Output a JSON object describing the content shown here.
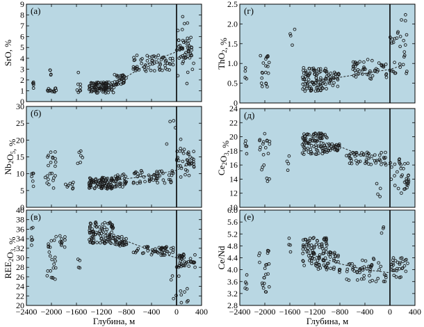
{
  "figure": {
    "panel_bg": "#b9d7e3",
    "marker_color": "#1a1a1a"
  },
  "chart_data": [
    {
      "type": "scatter",
      "panel_label": "(а)",
      "ylabel_parts": [
        "SrO, %"
      ],
      "xlim": [
        -2400,
        400
      ],
      "ylim": [
        0,
        9
      ],
      "yticks": [
        0,
        1,
        2,
        3,
        4,
        5,
        6,
        7,
        8,
        9
      ],
      "ytick_labels": [
        "0",
        "1",
        "2",
        "3",
        "4",
        "5",
        "6",
        "7",
        "8",
        "9"
      ],
      "xticks": [
        -2400,
        -2000,
        -1600,
        -1200,
        -800,
        -400,
        0,
        400
      ],
      "xtick_labels": [],
      "xlabel": "",
      "trend": [
        [
          -1400,
          0.8
        ],
        [
          -1000,
          1.5
        ],
        [
          -800,
          2.3
        ],
        [
          -400,
          3.7
        ],
        [
          0,
          4.6
        ],
        [
          200,
          5.3
        ]
      ],
      "clusters": [
        {
          "x0": -2300,
          "x1": -2280,
          "y0": 1.0,
          "y1": 1.8,
          "n": 5
        },
        {
          "x0": -2080,
          "x1": -1920,
          "y0": 0.8,
          "y1": 1.3,
          "n": 14
        },
        {
          "x0": -2040,
          "x1": -2000,
          "y0": 2.3,
          "y1": 3.0,
          "n": 4
        },
        {
          "x0": -1620,
          "x1": -1500,
          "y0": 0.8,
          "y1": 2.8,
          "n": 8
        },
        {
          "x0": -1400,
          "x1": -1000,
          "y0": 0.8,
          "y1": 1.8,
          "n": 90
        },
        {
          "x0": -1000,
          "x1": -800,
          "y0": 1.5,
          "y1": 2.5,
          "n": 30
        },
        {
          "x0": -700,
          "x1": -50,
          "y0": 2.8,
          "y1": 4.3,
          "n": 60
        },
        {
          "x0": 0,
          "x1": 250,
          "y0": 4.0,
          "y1": 6.0,
          "n": 40
        },
        {
          "x0": 0,
          "x1": 300,
          "y0": 1.5,
          "y1": 8.0,
          "n": 15
        }
      ]
    },
    {
      "type": "scatter",
      "panel_label": "(б)",
      "ylabel_parts": [
        "Nb",
        "2",
        "O",
        "5",
        ", %"
      ],
      "xlim": [
        -2400,
        400
      ],
      "ylim": [
        0,
        30
      ],
      "yticks": [
        0,
        5,
        10,
        15,
        20,
        25,
        30
      ],
      "ytick_labels": [
        "0",
        "5",
        "10",
        "15",
        "20",
        "25",
        "30"
      ],
      "xticks": [
        -2400,
        -2000,
        -1600,
        -1200,
        -800,
        -400,
        0,
        400
      ],
      "xtick_labels": [],
      "xlabel": "",
      "trend": [
        [
          -1400,
          7
        ],
        [
          -800,
          8.5
        ],
        [
          -400,
          9.5
        ],
        [
          0,
          11
        ],
        [
          200,
          13
        ]
      ],
      "clusters": [
        {
          "x0": -2320,
          "x1": -2280,
          "y0": 5.5,
          "y1": 11,
          "n": 6
        },
        {
          "x0": -2100,
          "x1": -1920,
          "y0": 5.5,
          "y1": 16.5,
          "n": 22
        },
        {
          "x0": -1800,
          "x1": -1650,
          "y0": 5.5,
          "y1": 7.5,
          "n": 8
        },
        {
          "x0": -1600,
          "x1": -1500,
          "y0": 11,
          "y1": 17,
          "n": 6
        },
        {
          "x0": -1400,
          "x1": -1000,
          "y0": 5.5,
          "y1": 9,
          "n": 90
        },
        {
          "x0": -1000,
          "x1": -800,
          "y0": 6,
          "y1": 10,
          "n": 30
        },
        {
          "x0": -700,
          "x1": -50,
          "y0": 7,
          "y1": 11,
          "n": 50
        },
        {
          "x0": 0,
          "x1": 300,
          "y0": 9,
          "y1": 18,
          "n": 40
        },
        {
          "x0": -200,
          "x1": 200,
          "y0": 18,
          "y1": 27,
          "n": 5
        }
      ]
    },
    {
      "type": "scatter",
      "panel_label": "(в)",
      "ylabel_parts": [
        "REE",
        "2",
        "O",
        "3",
        ", %"
      ],
      "xlim": [
        -2400,
        400
      ],
      "ylim": [
        20,
        40
      ],
      "yticks": [
        20,
        22,
        24,
        26,
        28,
        30,
        32,
        34,
        36,
        38,
        40
      ],
      "ytick_labels": [
        "20",
        "22",
        "24",
        "26",
        "28",
        "30",
        "32",
        "34",
        "36",
        "38",
        "40"
      ],
      "xticks": [
        -2400,
        -2000,
        -1600,
        -1200,
        -800,
        -400,
        0,
        400
      ],
      "xtick_labels": [
        "−2400",
        "−2000",
        "−1600",
        "−1200",
        "−800",
        "−400",
        "0",
        "400"
      ],
      "xlabel": "Глубина, м",
      "trend": [
        [
          -1400,
          36
        ],
        [
          -1000,
          34.5
        ],
        [
          -800,
          33.5
        ],
        [
          -400,
          31.5
        ],
        [
          0,
          30
        ]
      ],
      "clusters": [
        {
          "x0": -2320,
          "x1": -2280,
          "y0": 32,
          "y1": 36.5,
          "n": 6
        },
        {
          "x0": -2100,
          "x1": -1920,
          "y0": 25,
          "y1": 35,
          "n": 22
        },
        {
          "x0": -1880,
          "x1": -1780,
          "y0": 32,
          "y1": 35,
          "n": 10
        },
        {
          "x0": -1620,
          "x1": -1540,
          "y0": 27,
          "y1": 30,
          "n": 4
        },
        {
          "x0": -1400,
          "x1": -1000,
          "y0": 33,
          "y1": 37.5,
          "n": 90
        },
        {
          "x0": -1000,
          "x1": -800,
          "y0": 32.5,
          "y1": 34.5,
          "n": 30
        },
        {
          "x0": -700,
          "x1": -50,
          "y0": 30.5,
          "y1": 32.5,
          "n": 50
        },
        {
          "x0": 0,
          "x1": 300,
          "y0": 28,
          "y1": 31,
          "n": 40
        },
        {
          "x0": -100,
          "x1": 200,
          "y0": 20.5,
          "y1": 27,
          "n": 12
        }
      ]
    },
    {
      "type": "scatter",
      "panel_label": "(г)",
      "ylabel_parts": [
        "ThO",
        "2",
        ", %"
      ],
      "xlim": [
        -2400,
        400
      ],
      "ylim": [
        0,
        2.5
      ],
      "yticks": [
        0,
        0.5,
        1,
        1.5,
        2,
        2.5
      ],
      "ytick_labels": [
        "0",
        "0.5",
        "1.0",
        "1.5",
        "2.0",
        "2.5"
      ],
      "xticks": [
        -2400,
        -2000,
        -1600,
        -1200,
        -800,
        -400,
        0,
        400
      ],
      "xtick_labels": [],
      "xlabel": "",
      "trend": [
        [
          -1400,
          0.5
        ],
        [
          -800,
          0.65
        ],
        [
          -400,
          0.75
        ],
        [
          0,
          0.85
        ],
        [
          200,
          0.95
        ]
      ],
      "clusters": [
        {
          "x0": -2320,
          "x1": -2280,
          "y0": 0.6,
          "y1": 0.9,
          "n": 4
        },
        {
          "x0": -2100,
          "x1": -1920,
          "y0": 0.4,
          "y1": 1.2,
          "n": 20
        },
        {
          "x0": -1600,
          "x1": -1520,
          "y0": 1.4,
          "y1": 1.9,
          "n": 4
        },
        {
          "x0": -1400,
          "x1": -1000,
          "y0": 0.3,
          "y1": 0.9,
          "n": 90
        },
        {
          "x0": -1000,
          "x1": -800,
          "y0": 0.4,
          "y1": 0.8,
          "n": 25
        },
        {
          "x0": -600,
          "x1": -50,
          "y0": 0.6,
          "y1": 1.1,
          "n": 50
        },
        {
          "x0": 0,
          "x1": 300,
          "y0": 0.6,
          "y1": 2.3,
          "n": 30
        }
      ]
    },
    {
      "type": "scatter",
      "panel_label": "(д)",
      "ylabel_parts": [
        "Ce",
        "2",
        "O",
        "3",
        ", %"
      ],
      "xlim": [
        -2400,
        400
      ],
      "ylim": [
        10,
        24
      ],
      "yticks": [
        10,
        12,
        14,
        16,
        18,
        20,
        22,
        24
      ],
      "ytick_labels": [
        "10",
        "12",
        "14",
        "16",
        "18",
        "20",
        "22",
        "24"
      ],
      "xticks": [
        -2400,
        -2000,
        -1600,
        -1200,
        -800,
        -400,
        0,
        400
      ],
      "xtick_labels": [],
      "xlabel": "",
      "trend": [
        [
          -1400,
          20
        ],
        [
          -800,
          18.6
        ],
        [
          -400,
          17.2
        ],
        [
          0,
          16
        ]
      ],
      "clusters": [
        {
          "x0": -2320,
          "x1": -2280,
          "y0": 17.5,
          "y1": 20,
          "n": 5
        },
        {
          "x0": -2100,
          "x1": -1920,
          "y0": 13.5,
          "y1": 20.5,
          "n": 20
        },
        {
          "x0": -1650,
          "x1": -1550,
          "y0": 15,
          "y1": 18,
          "n": 4
        },
        {
          "x0": -1400,
          "x1": -1000,
          "y0": 17.5,
          "y1": 20.5,
          "n": 90
        },
        {
          "x0": -1000,
          "x1": -800,
          "y0": 18,
          "y1": 19,
          "n": 25
        },
        {
          "x0": -700,
          "x1": -50,
          "y0": 16,
          "y1": 17.8,
          "n": 50
        },
        {
          "x0": 0,
          "x1": 300,
          "y0": 12,
          "y1": 17,
          "n": 35
        },
        {
          "x0": -250,
          "x1": -150,
          "y0": 11,
          "y1": 14,
          "n": 4
        }
      ]
    },
    {
      "type": "scatter",
      "panel_label": "(е)",
      "ylabel_parts": [
        "Ce/Nd"
      ],
      "xlim": [
        -2400,
        400
      ],
      "ylim": [
        2.8,
        6.0
      ],
      "yticks": [
        2.8,
        3.2,
        3.6,
        4.0,
        4.4,
        4.8,
        5.2,
        5.6,
        6.0
      ],
      "ytick_labels": [
        "2.8",
        "3.2",
        "3.6",
        "4.0",
        "4.4",
        "4.8",
        "5.2",
        "5.6",
        "6.0"
      ],
      "xticks": [
        -2400,
        -2000,
        -1600,
        -1200,
        -800,
        -400,
        0,
        400
      ],
      "xtick_labels": [
        "−2400",
        "−2000",
        "−1600",
        "−1200",
        "−800",
        "−400",
        "0",
        "400"
      ],
      "xlabel": "Глубина, м",
      "trend": [
        [
          -1400,
          4.6
        ],
        [
          -800,
          4.2
        ],
        [
          -400,
          4.0
        ],
        [
          0,
          3.9
        ]
      ],
      "clusters": [
        {
          "x0": -2320,
          "x1": -2280,
          "y0": 3.3,
          "y1": 4.2,
          "n": 5
        },
        {
          "x0": -2100,
          "x1": -1920,
          "y0": 3.1,
          "y1": 4.8,
          "n": 22
        },
        {
          "x0": -1620,
          "x1": -1540,
          "y0": 4.5,
          "y1": 5.4,
          "n": 4
        },
        {
          "x0": -1400,
          "x1": -1000,
          "y0": 4.0,
          "y1": 5.1,
          "n": 90
        },
        {
          "x0": -1000,
          "x1": -800,
          "y0": 3.9,
          "y1": 4.6,
          "n": 25
        },
        {
          "x0": -700,
          "x1": -50,
          "y0": 3.6,
          "y1": 4.4,
          "n": 50
        },
        {
          "x0": 0,
          "x1": 300,
          "y0": 3.7,
          "y1": 4.4,
          "n": 30
        },
        {
          "x0": -200,
          "x1": -100,
          "y0": 5.2,
          "y1": 5.7,
          "n": 3
        }
      ]
    }
  ]
}
